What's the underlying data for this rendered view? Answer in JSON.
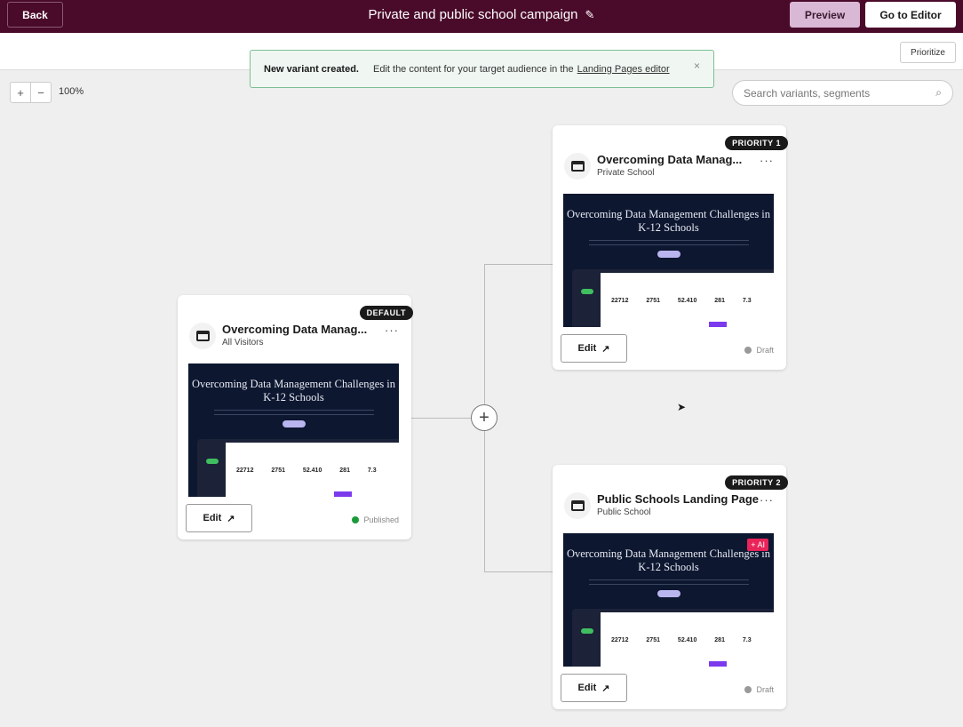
{
  "header": {
    "back": "Back",
    "title": "Private and public school campaign",
    "edit_icon": "pencil-icon",
    "preview": "Preview",
    "go_to_editor": "Go to Editor"
  },
  "toolbar": {
    "prioritize": "Prioritize",
    "zoom_in": "+",
    "zoom_out": "−",
    "zoom_level": "100%",
    "search_placeholder": "Search variants, segments"
  },
  "toast": {
    "title": "New variant created.",
    "message": "Edit the content for your target audience in the",
    "link": "Landing Pages editor",
    "close": "×"
  },
  "colors": {
    "header_bg": "#4a0a2a",
    "published": "#1a9a3a",
    "draft": "#999999",
    "ai_badge": "#e8245a"
  },
  "cards": [
    {
      "badge": "DEFAULT",
      "name": "Overcoming Data Manag...",
      "segment": "All Visitors",
      "preview_heading": "Overcoming Data Management Challenges in K-12 Schools",
      "preview_stats": "22712 2751 52.410 281 7.3",
      "edit": "Edit",
      "status": "Published",
      "status_color": "#1a9a3a",
      "ai": ""
    },
    {
      "badge": "PRIORITY 1",
      "name": "Overcoming Data Manag...",
      "segment": "Private School",
      "preview_heading": "Overcoming Data Management Challenges in K-12 Schools",
      "preview_stats": "22712 2751 52.410 281 7.3",
      "edit": "Edit",
      "status": "Draft",
      "status_color": "#999999",
      "ai": ""
    },
    {
      "badge": "PRIORITY 2",
      "name": "Public Schools Landing Page",
      "segment": "Public School",
      "preview_heading": "Overcoming Data Management Challenges in K-12 Schools",
      "preview_stats": "22712 2751 52.410 281 7.3",
      "edit": "Edit",
      "status": "Draft",
      "status_color": "#999999",
      "ai": "+ AI"
    }
  ]
}
